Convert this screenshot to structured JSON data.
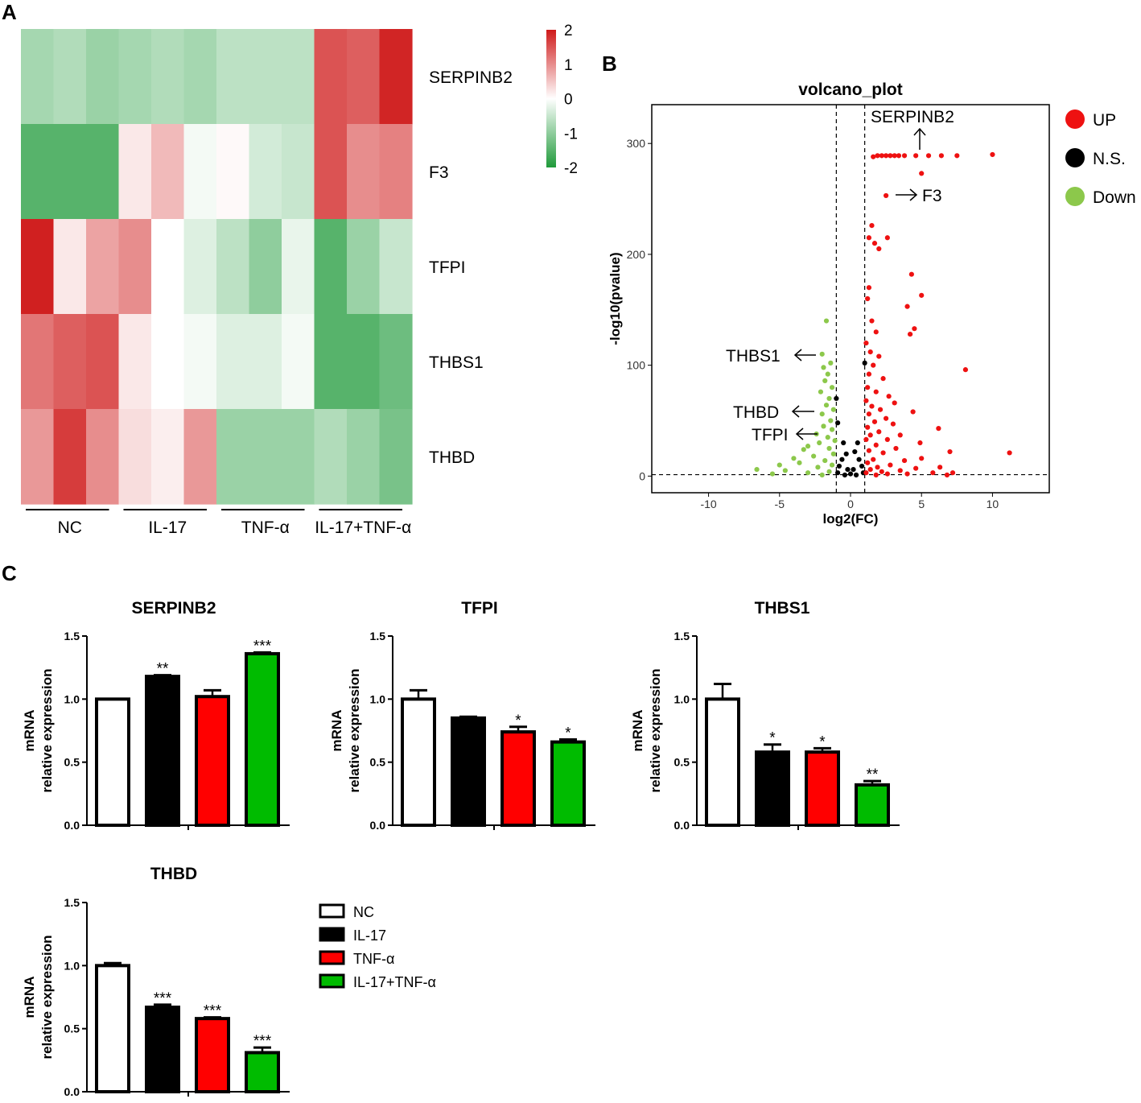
{
  "panels": {
    "a": "A",
    "b": "B",
    "c": "C"
  },
  "chart_data": [
    {
      "type": "heatmap",
      "panel": "A",
      "rows": [
        "SERPINB2",
        "F3",
        "TFPI",
        "THBS1",
        "THBD"
      ],
      "groups": [
        "NC",
        "IL-17",
        "TNF-α",
        "IL-17+TNF-α"
      ],
      "samples_per_group": 3,
      "values": [
        [
          -0.8,
          -0.7,
          -0.9,
          -0.8,
          -0.7,
          -0.8,
          -0.6,
          -0.6,
          -0.6,
          1.5,
          1.4,
          1.9
        ],
        [
          -1.5,
          -1.5,
          -1.5,
          0.2,
          0.6,
          -0.1,
          0.05,
          -0.4,
          -0.5,
          1.5,
          1.0,
          1.1
        ],
        [
          1.95,
          0.2,
          0.8,
          1.0,
          0.0,
          -0.3,
          -0.6,
          -1.0,
          -0.2,
          -1.5,
          -0.9,
          -0.5
        ],
        [
          1.2,
          1.4,
          1.5,
          0.2,
          0.0,
          -0.1,
          -0.3,
          -0.3,
          -0.1,
          -1.5,
          -1.5,
          -1.3
        ],
        [
          0.9,
          1.7,
          1.0,
          0.3,
          0.15,
          0.9,
          -0.9,
          -0.9,
          -0.9,
          -0.7,
          -0.9,
          -1.2
        ]
      ],
      "colorbar": {
        "ticks": [
          "2",
          "1",
          "0",
          "-1",
          "-2"
        ],
        "min": -2,
        "max": 2,
        "low_color": "#1f9a3a",
        "mid_color": "#ffffff",
        "high_color": "#cf1a1a"
      }
    },
    {
      "type": "scatter",
      "panel": "B",
      "title": "volcano_plot",
      "xlabel": "log2(FC)",
      "ylabel": "-log10(pvalue)",
      "xlim": [
        -14,
        14
      ],
      "ylim": [
        -15,
        335
      ],
      "xticks": [
        "-10",
        "-5",
        "0",
        "5",
        "10"
      ],
      "yticks": [
        "0",
        "100",
        "200",
        "300"
      ],
      "thresholds": {
        "x": [
          -1,
          1
        ],
        "y": 1.3
      },
      "legend": [
        {
          "label": "UP",
          "color": "#ee1111"
        },
        {
          "label": "N.S.",
          "color": "#000000"
        },
        {
          "label": "Down",
          "color": "#8cc84b"
        }
      ],
      "annotations": [
        {
          "text": "SERPINB2",
          "x": 4.7,
          "y": 300
        },
        {
          "text": "F3",
          "x": 2.5,
          "y": 253
        },
        {
          "text": "THBS1",
          "x": -1.1,
          "y": 110
        },
        {
          "text": "THBD",
          "x": -1.3,
          "y": 58
        },
        {
          "text": "TFPI",
          "x": -1.5,
          "y": 37
        }
      ],
      "up_points": [
        [
          1.6,
          288
        ],
        [
          1.9,
          289
        ],
        [
          2.2,
          289
        ],
        [
          2.5,
          289
        ],
        [
          2.8,
          289
        ],
        [
          3.1,
          289
        ],
        [
          3.4,
          289
        ],
        [
          3.8,
          289
        ],
        [
          4.6,
          289
        ],
        [
          5.5,
          289
        ],
        [
          6.4,
          289
        ],
        [
          7.5,
          289
        ],
        [
          10.0,
          290
        ],
        [
          5.0,
          273
        ],
        [
          2.5,
          253
        ],
        [
          1.5,
          226
        ],
        [
          1.3,
          215
        ],
        [
          2.6,
          215
        ],
        [
          1.7,
          210
        ],
        [
          2.0,
          205
        ],
        [
          4.3,
          182
        ],
        [
          5.0,
          163
        ],
        [
          1.3,
          170
        ],
        [
          1.2,
          160
        ],
        [
          4.0,
          153
        ],
        [
          4.5,
          133
        ],
        [
          4.2,
          128
        ],
        [
          1.5,
          140
        ],
        [
          1.8,
          130
        ],
        [
          1.1,
          120
        ],
        [
          1.4,
          112
        ],
        [
          2.0,
          108
        ],
        [
          1.6,
          100
        ],
        [
          8.1,
          96
        ],
        [
          1.3,
          92
        ],
        [
          2.3,
          88
        ],
        [
          1.2,
          80
        ],
        [
          1.8,
          76
        ],
        [
          2.7,
          72
        ],
        [
          1.1,
          68
        ],
        [
          3.1,
          66
        ],
        [
          1.5,
          63
        ],
        [
          2.1,
          60
        ],
        [
          4.4,
          58
        ],
        [
          1.3,
          56
        ],
        [
          2.5,
          52
        ],
        [
          1.7,
          49
        ],
        [
          3.0,
          47
        ],
        [
          6.2,
          43
        ],
        [
          1.2,
          44
        ],
        [
          2.0,
          40
        ],
        [
          1.4,
          37
        ],
        [
          3.5,
          37
        ],
        [
          2.6,
          33
        ],
        [
          1.1,
          33
        ],
        [
          4.9,
          30
        ],
        [
          1.8,
          28
        ],
        [
          3.2,
          25
        ],
        [
          7.0,
          22
        ],
        [
          11.2,
          21
        ],
        [
          1.3,
          23
        ],
        [
          2.3,
          21
        ],
        [
          5.0,
          16
        ],
        [
          1.6,
          15
        ],
        [
          3.8,
          14
        ],
        [
          1.2,
          12
        ],
        [
          2.8,
          10
        ],
        [
          6.3,
          8
        ],
        [
          1.9,
          8
        ],
        [
          4.6,
          7
        ],
        [
          1.4,
          6
        ],
        [
          3.5,
          5
        ],
        [
          2.2,
          4
        ],
        [
          5.8,
          3
        ],
        [
          7.2,
          3
        ],
        [
          1.1,
          3
        ],
        [
          4.0,
          2
        ],
        [
          2.6,
          2
        ],
        [
          6.8,
          1
        ],
        [
          1.8,
          1
        ]
      ],
      "ns_points": [
        [
          1.0,
          102
        ],
        [
          -1.0,
          70
        ],
        [
          -0.9,
          48
        ],
        [
          0.5,
          30
        ],
        [
          -0.5,
          30
        ],
        [
          0.3,
          22
        ],
        [
          -0.3,
          20
        ],
        [
          0.6,
          15
        ],
        [
          -0.6,
          15
        ],
        [
          0.8,
          9
        ],
        [
          -0.8,
          9
        ],
        [
          0.2,
          6
        ],
        [
          -0.2,
          6
        ],
        [
          0.9,
          3
        ],
        [
          -0.9,
          3
        ],
        [
          0.0,
          2
        ],
        [
          0.4,
          1
        ],
        [
          -0.4,
          1
        ]
      ],
      "down_points": [
        [
          -1.7,
          140
        ],
        [
          -2.0,
          110
        ],
        [
          -1.4,
          102
        ],
        [
          -1.9,
          98
        ],
        [
          -1.6,
          92
        ],
        [
          -1.8,
          86
        ],
        [
          -1.3,
          80
        ],
        [
          -2.1,
          76
        ],
        [
          -1.5,
          70
        ],
        [
          -1.7,
          64
        ],
        [
          -1.2,
          60
        ],
        [
          -2.0,
          56
        ],
        [
          -1.4,
          50
        ],
        [
          -1.9,
          45
        ],
        [
          -1.3,
          42
        ],
        [
          -2.4,
          38
        ],
        [
          -1.6,
          35
        ],
        [
          -1.1,
          32
        ],
        [
          -2.2,
          30
        ],
        [
          -3.0,
          27
        ],
        [
          -1.5,
          25
        ],
        [
          -3.3,
          24
        ],
        [
          -1.2,
          20
        ],
        [
          -2.6,
          18
        ],
        [
          -4.0,
          16
        ],
        [
          -1.8,
          14
        ],
        [
          -3.6,
          12
        ],
        [
          -1.3,
          10
        ],
        [
          -5.0,
          10
        ],
        [
          -2.3,
          8
        ],
        [
          -6.6,
          6
        ],
        [
          -4.6,
          5
        ],
        [
          -1.5,
          4
        ],
        [
          -3.0,
          3
        ],
        [
          -5.5,
          2
        ],
        [
          -2.0,
          1
        ]
      ]
    },
    {
      "type": "bar",
      "panel": "C",
      "title": "SERPINB2",
      "ylabel_line1": "mRNA",
      "ylabel_line2": "relative expression",
      "ylim": [
        0,
        1.5
      ],
      "yticks": [
        "0.0",
        "0.5",
        "1.0",
        "1.5"
      ],
      "categories": [
        "NC",
        "IL-17",
        "TNF-α",
        "IL-17+TNF-α"
      ],
      "values": [
        1.0,
        1.18,
        1.02,
        1.36
      ],
      "errors": [
        0.0,
        0.01,
        0.05,
        0.01
      ],
      "significance": [
        "",
        "**",
        "",
        "***"
      ]
    },
    {
      "type": "bar",
      "panel": "C",
      "title": "TFPI",
      "ylabel_line1": "mRNA",
      "ylabel_line2": "relative expression",
      "ylim": [
        0,
        1.5
      ],
      "yticks": [
        "0.0",
        "0.5",
        "1.0",
        "1.5"
      ],
      "categories": [
        "NC",
        "IL-17",
        "TNF-α",
        "IL-17+TNF-α"
      ],
      "values": [
        1.0,
        0.85,
        0.74,
        0.66
      ],
      "errors": [
        0.07,
        0.01,
        0.04,
        0.02
      ],
      "significance": [
        "",
        "",
        "*",
        "*"
      ]
    },
    {
      "type": "bar",
      "panel": "C",
      "title": "THBS1",
      "ylabel_line1": "mRNA",
      "ylabel_line2": "relative expression",
      "ylim": [
        0,
        1.5
      ],
      "yticks": [
        "0.0",
        "0.5",
        "1.0",
        "1.5"
      ],
      "categories": [
        "NC",
        "IL-17",
        "TNF-α",
        "IL-17+TNF-α"
      ],
      "values": [
        1.0,
        0.58,
        0.58,
        0.32
      ],
      "errors": [
        0.12,
        0.06,
        0.03,
        0.03
      ],
      "significance": [
        "",
        "*",
        "*",
        "**"
      ]
    },
    {
      "type": "bar",
      "panel": "C",
      "title": "THBD",
      "ylabel_line1": "mRNA",
      "ylabel_line2": "relative expression",
      "ylim": [
        0,
        1.5
      ],
      "yticks": [
        "0.0",
        "0.5",
        "1.0",
        "1.5"
      ],
      "categories": [
        "NC",
        "IL-17",
        "TNF-α",
        "IL-17+TNF-α"
      ],
      "values": [
        1.0,
        0.67,
        0.58,
        0.31
      ],
      "errors": [
        0.02,
        0.02,
        0.01,
        0.04
      ],
      "significance": [
        "",
        "***",
        "***",
        "***"
      ]
    }
  ],
  "bar_legend": [
    {
      "label": "NC",
      "color": "#ffffff"
    },
    {
      "label": "IL-17",
      "color": "#000000"
    },
    {
      "label": "TNF-α",
      "color": "#ff0000"
    },
    {
      "label": "IL-17+TNF-α",
      "color": "#00bb00"
    }
  ]
}
